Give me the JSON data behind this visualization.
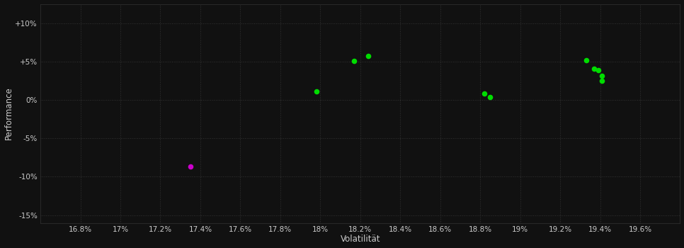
{
  "background_color": "#111111",
  "plot_bg_color": "#111111",
  "grid_color": "#333333",
  "text_color": "#cccccc",
  "xlabel": "Volatilität",
  "ylabel": "Performance",
  "xlim": [
    16.6,
    19.8
  ],
  "ylim": [
    -16.0,
    12.5
  ],
  "xticks": [
    16.8,
    17.0,
    17.2,
    17.4,
    17.6,
    17.8,
    18.0,
    18.2,
    18.4,
    18.6,
    18.8,
    19.0,
    19.2,
    19.4,
    19.6
  ],
  "xtick_labels": [
    "16.8%",
    "17%",
    "17.2%",
    "17.4%",
    "17.6%",
    "17.8%",
    "18%",
    "18.2%",
    "18.4%",
    "18.6%",
    "18.8%",
    "19%",
    "19.2%",
    "19.4%",
    "19.6%"
  ],
  "yticks": [
    10,
    5,
    0,
    -5,
    -10,
    -15
  ],
  "ytick_labels": [
    "+10%",
    "+5%",
    "0%",
    "-5%",
    "-10%",
    "-15%"
  ],
  "points_green": [
    [
      17.98,
      1.1
    ],
    [
      18.17,
      5.1
    ],
    [
      18.24,
      5.7
    ],
    [
      18.82,
      0.8
    ],
    [
      18.85,
      0.4
    ],
    [
      19.33,
      5.2
    ],
    [
      19.37,
      4.1
    ],
    [
      19.39,
      3.85
    ],
    [
      19.41,
      3.1
    ],
    [
      19.41,
      2.5
    ]
  ],
  "points_magenta": [
    [
      17.35,
      -8.7
    ]
  ],
  "point_size": 30,
  "dot_color_green": "#00dd00",
  "dot_color_magenta": "#cc00cc"
}
